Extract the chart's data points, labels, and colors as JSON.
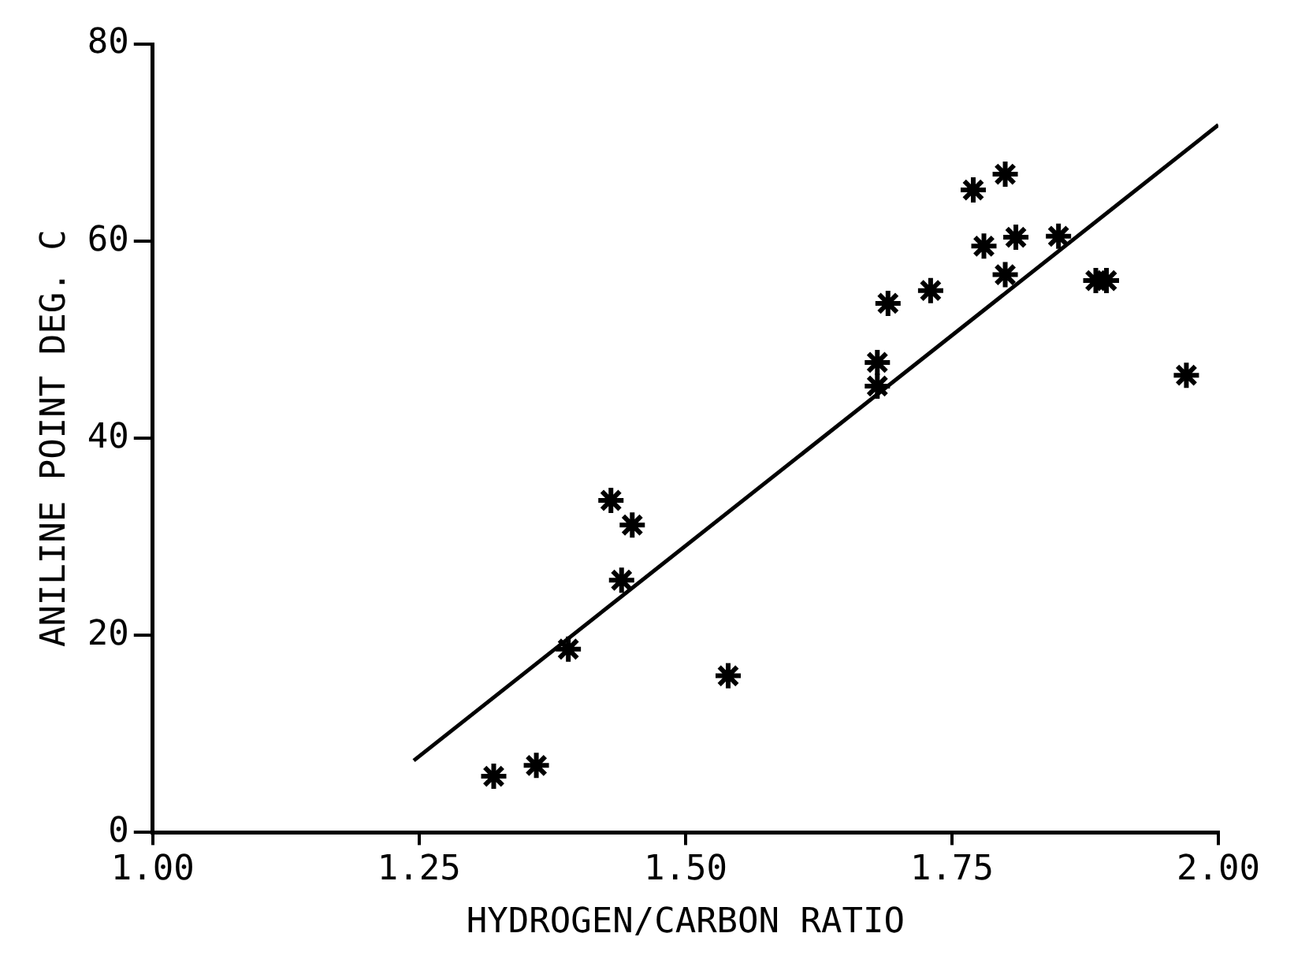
{
  "chart_data": {
    "type": "scatter",
    "xlabel": "HYDROGEN/CARBON RATIO",
    "ylabel": "ANILINE POINT DEG. C",
    "xlim": [
      1,
      2
    ],
    "xticks": [
      {
        "value": 1,
        "label": "1.00"
      },
      {
        "value": 1.25,
        "label": "1.25"
      },
      {
        "value": 1.5,
        "label": "1.50"
      },
      {
        "value": 1.75,
        "label": "1.75"
      },
      {
        "value": 2,
        "label": "2.00"
      }
    ],
    "ylim": [
      0,
      80
    ],
    "yticks": [
      0,
      20,
      40,
      60,
      80
    ],
    "grid": false,
    "legend": false,
    "marker": "cross",
    "series": [
      {
        "color": "#000000",
        "x": [
          1.32,
          1.36,
          1.39,
          1.43,
          1.45,
          1.44,
          1.54,
          1.69,
          1.73,
          1.68,
          1.68,
          1.77,
          1.8,
          1.78,
          1.81,
          1.85,
          1.8,
          1.885,
          1.895,
          1.97
        ],
        "values": [
          5.7,
          6.8,
          18.6,
          33.7,
          31.2,
          25.6,
          15.9,
          53.7,
          55,
          47.7,
          45.3,
          65.2,
          66.8,
          59.5,
          60.4,
          60.5,
          56.6,
          56,
          56,
          46.4
        ]
      },
      {
        "type": "line",
        "color": "#000000",
        "marker": "none",
        "x": [
          1.245,
          2.0
        ],
        "values": [
          7.3,
          71.8
        ]
      }
    ]
  }
}
